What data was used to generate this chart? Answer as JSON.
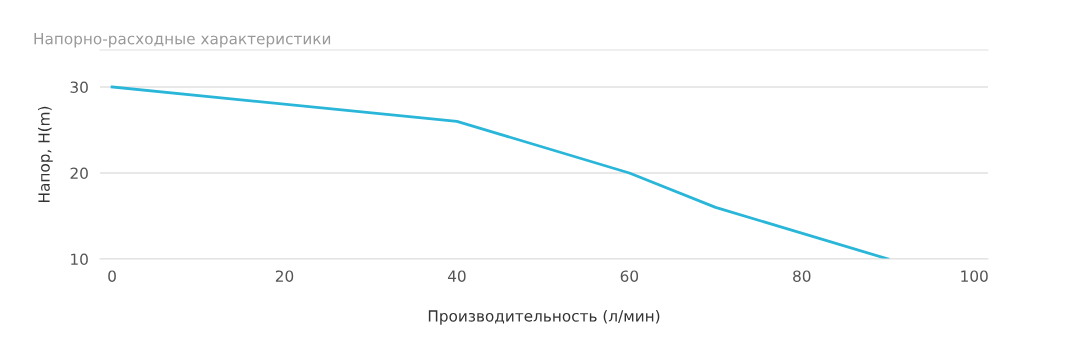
{
  "chart_data": {
    "type": "line",
    "title": "Напорно-расходные характеристики",
    "xlabel": "Производительность (л/мин)",
    "ylabel": "Напор, H(m)",
    "x": [
      0,
      40,
      60,
      70,
      90
    ],
    "series": [
      {
        "color": "#29b6d9",
        "values": [
          30,
          26,
          20,
          16,
          10
        ]
      }
    ],
    "xlim": [
      -1.4,
      101.6
    ],
    "xticks": [
      0,
      20,
      40,
      60,
      80,
      100
    ],
    "ylim": [
      10,
      34.3
    ],
    "yticks": [
      10,
      20,
      30
    ],
    "grid": "y",
    "marker": "none",
    "line_style": "solid"
  }
}
